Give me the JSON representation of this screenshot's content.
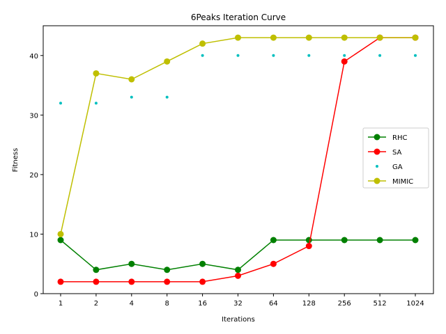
{
  "chart_data": {
    "type": "line",
    "title": "6Peaks Iteration Curve",
    "xlabel": "Iterations",
    "ylabel": "Fitness",
    "categories": [
      "1",
      "2",
      "4",
      "8",
      "16",
      "32",
      "64",
      "128",
      "256",
      "512",
      "1024"
    ],
    "ylim": [
      0,
      45
    ],
    "yticks": [
      0,
      10,
      20,
      30,
      40
    ],
    "legend_position": "center-right",
    "grid": false,
    "series": [
      {
        "name": "RHC",
        "color": "#008000",
        "style": "line-marker",
        "values": [
          9,
          4,
          5,
          4,
          5,
          4,
          9,
          9,
          9,
          9,
          9
        ]
      },
      {
        "name": "SA",
        "color": "#ff0000",
        "style": "line-marker",
        "values": [
          2,
          2,
          2,
          2,
          2,
          3,
          5,
          8,
          39,
          43,
          43
        ]
      },
      {
        "name": "GA",
        "color": "#00bfbf",
        "style": "dots",
        "values": [
          32,
          32,
          33,
          33,
          40,
          40,
          40,
          40,
          40,
          40,
          40
        ]
      },
      {
        "name": "MIMIC",
        "color": "#bfbf00",
        "style": "line-marker",
        "values": [
          10,
          37,
          36,
          39,
          42,
          43,
          43,
          43,
          43,
          43,
          43
        ]
      }
    ]
  }
}
